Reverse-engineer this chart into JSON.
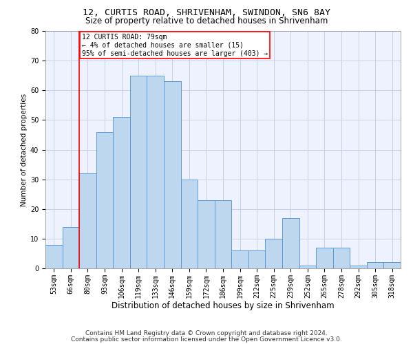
{
  "title1": "12, CURTIS ROAD, SHRIVENHAM, SWINDON, SN6 8AY",
  "title2": "Size of property relative to detached houses in Shrivenham",
  "xlabel": "Distribution of detached houses by size in Shrivenham",
  "ylabel": "Number of detached properties",
  "categories": [
    "53sqm",
    "66sqm",
    "80sqm",
    "93sqm",
    "106sqm",
    "119sqm",
    "133sqm",
    "146sqm",
    "159sqm",
    "172sqm",
    "186sqm",
    "199sqm",
    "212sqm",
    "225sqm",
    "239sqm",
    "252sqm",
    "265sqm",
    "278sqm",
    "292sqm",
    "305sqm",
    "318sqm"
  ],
  "values": [
    8,
    14,
    32,
    46,
    51,
    65,
    65,
    63,
    30,
    23,
    23,
    6,
    6,
    10,
    17,
    1,
    7,
    7,
    1,
    2,
    2
  ],
  "bar_color": "#BDD7EE",
  "bar_edge_color": "#5B9BD5",
  "red_line_index": 2,
  "annotation_text": "12 CURTIS ROAD: 79sqm\n← 4% of detached houses are smaller (15)\n95% of semi-detached houses are larger (403) →",
  "annotation_box_color": "white",
  "annotation_box_edge": "red",
  "footer1": "Contains HM Land Registry data © Crown copyright and database right 2024.",
  "footer2": "Contains public sector information licensed under the Open Government Licence v3.0.",
  "ylim": [
    0,
    80
  ],
  "yticks": [
    0,
    10,
    20,
    30,
    40,
    50,
    60,
    70,
    80
  ],
  "bg_color": "#EEF2FF",
  "grid_color": "#C8D0E8",
  "title1_fontsize": 9.5,
  "title2_fontsize": 8.5,
  "xlabel_fontsize": 8.5,
  "ylabel_fontsize": 7.5,
  "tick_fontsize": 7,
  "annot_fontsize": 7,
  "footer_fontsize": 6.5
}
